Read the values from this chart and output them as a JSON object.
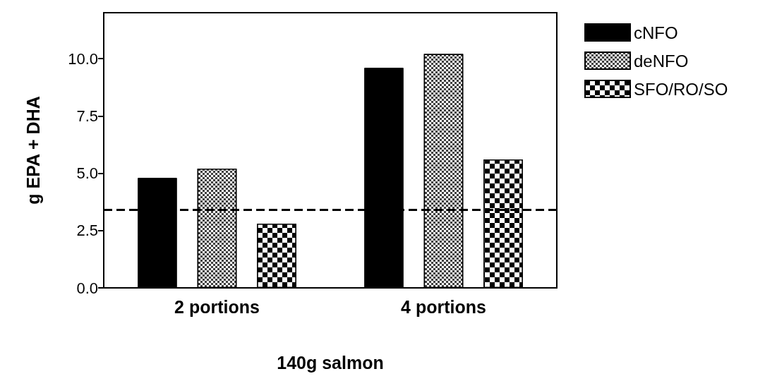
{
  "chart_data": {
    "type": "bar",
    "xlabel": "140g salmon",
    "ylabel": "g EPA + DHA",
    "categories": [
      "2 portions",
      "4 portions"
    ],
    "series": [
      {
        "name": "cNFO",
        "color": "#000000",
        "values": [
          4.8,
          9.6
        ]
      },
      {
        "name": "deNFO",
        "color": "#404040",
        "values": [
          5.2,
          10.2
        ]
      },
      {
        "name": "SFO/RO/SO",
        "color": "#000000",
        "values": [
          2.8,
          5.6
        ]
      }
    ],
    "ylim": [
      0,
      12
    ],
    "yticks": [
      {
        "value": 0,
        "label": "0.0"
      },
      2.5,
      {
        "value": 5,
        "label": "5.0"
      },
      7.5,
      {
        "value": 10,
        "label": "10.0"
      }
    ],
    "ref_lines": [
      {
        "axis": "y",
        "value": 3.4,
        "color": "#000000",
        "line_style": "dashed"
      }
    ],
    "legend": "top right",
    "grid": false
  }
}
